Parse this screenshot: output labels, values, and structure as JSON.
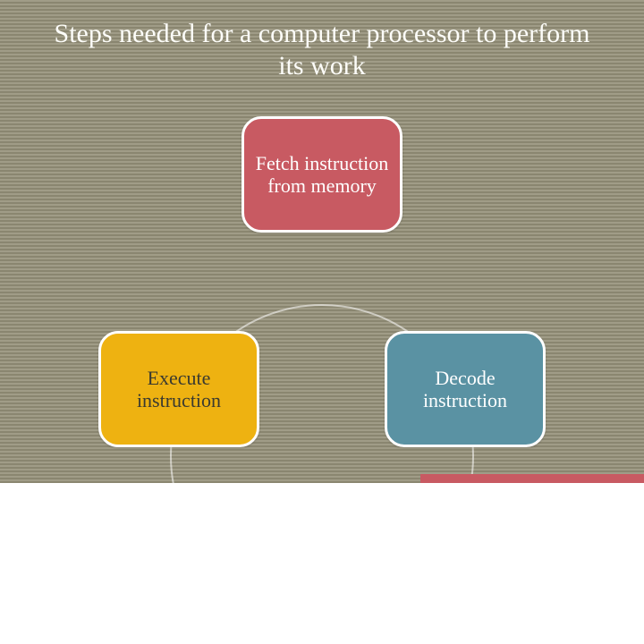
{
  "title": "Steps needed for a computer processor to perform its work",
  "diagram": {
    "type": "cycle",
    "ring_color": "#ffffff",
    "background_stripe_a": "#8a8670",
    "background_stripe_b": "#a09c87",
    "nodes": [
      {
        "label": "Fetch instruction from memory",
        "fill": "#c85a62",
        "text": "#ffffff",
        "position": "top"
      },
      {
        "label": "Decode instruction",
        "fill": "#5a92a3",
        "text": "#ffffff",
        "position": "right"
      },
      {
        "label": "Execute instruction",
        "fill": "#eeb211",
        "text": "#3a3a30",
        "position": "left"
      }
    ],
    "node_border_radius": 22,
    "node_border_color": "#ffffff",
    "node_font_size": 22,
    "title_font_size": 30,
    "title_color": "#fdfdf9"
  },
  "accent_color": "#c85a62"
}
